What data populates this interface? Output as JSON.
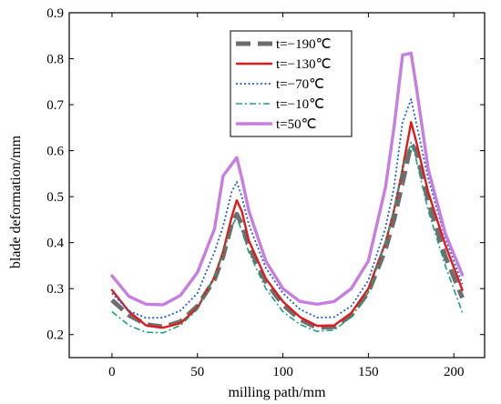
{
  "chart_data": {
    "type": "line",
    "xlabel": "milling path/mm",
    "ylabel": "blade deformation/mm",
    "xlim": [
      -25,
      218
    ],
    "ylim": [
      0.15,
      0.9
    ],
    "x_ticks": [
      0,
      50,
      100,
      150,
      200
    ],
    "y_ticks": [
      0.2,
      0.3,
      0.4,
      0.5,
      0.6,
      0.7,
      0.8,
      0.9
    ],
    "legend_position": "upper-center",
    "series": [
      {
        "name": "t=−190℃",
        "color": "#6e6e6e",
        "dash": "long-dash",
        "points": [
          [
            0,
            0.275
          ],
          [
            10,
            0.242
          ],
          [
            20,
            0.222
          ],
          [
            30,
            0.217
          ],
          [
            40,
            0.228
          ],
          [
            50,
            0.262
          ],
          [
            60,
            0.32
          ],
          [
            65,
            0.37
          ],
          [
            70,
            0.44
          ],
          [
            73,
            0.462
          ],
          [
            76,
            0.44
          ],
          [
            80,
            0.392
          ],
          [
            90,
            0.315
          ],
          [
            100,
            0.265
          ],
          [
            110,
            0.233
          ],
          [
            120,
            0.215
          ],
          [
            130,
            0.217
          ],
          [
            140,
            0.242
          ],
          [
            150,
            0.292
          ],
          [
            160,
            0.385
          ],
          [
            165,
            0.45
          ],
          [
            170,
            0.53
          ],
          [
            175,
            0.615
          ],
          [
            178,
            0.6
          ],
          [
            185,
            0.49
          ],
          [
            195,
            0.37
          ],
          [
            205,
            0.28
          ]
        ]
      },
      {
        "name": "t=−130℃",
        "color": "#e31a1c",
        "dash": "solid",
        "points": [
          [
            0,
            0.297
          ],
          [
            10,
            0.25
          ],
          [
            20,
            0.22
          ],
          [
            30,
            0.215
          ],
          [
            40,
            0.225
          ],
          [
            50,
            0.258
          ],
          [
            60,
            0.325
          ],
          [
            65,
            0.38
          ],
          [
            70,
            0.455
          ],
          [
            73,
            0.492
          ],
          [
            76,
            0.468
          ],
          [
            80,
            0.405
          ],
          [
            90,
            0.322
          ],
          [
            100,
            0.272
          ],
          [
            110,
            0.238
          ],
          [
            120,
            0.219
          ],
          [
            130,
            0.22
          ],
          [
            140,
            0.247
          ],
          [
            150,
            0.3
          ],
          [
            160,
            0.4
          ],
          [
            165,
            0.47
          ],
          [
            170,
            0.56
          ],
          [
            175,
            0.662
          ],
          [
            178,
            0.62
          ],
          [
            185,
            0.51
          ],
          [
            195,
            0.395
          ],
          [
            205,
            0.297
          ]
        ]
      },
      {
        "name": "t=−70℃",
        "color": "#1f5fd1",
        "dash": "dotted",
        "points": [
          [
            0,
            0.29
          ],
          [
            10,
            0.252
          ],
          [
            20,
            0.236
          ],
          [
            30,
            0.237
          ],
          [
            40,
            0.252
          ],
          [
            50,
            0.29
          ],
          [
            60,
            0.38
          ],
          [
            65,
            0.435
          ],
          [
            70,
            0.51
          ],
          [
            73,
            0.532
          ],
          [
            76,
            0.5
          ],
          [
            80,
            0.44
          ],
          [
            90,
            0.345
          ],
          [
            100,
            0.29
          ],
          [
            110,
            0.255
          ],
          [
            120,
            0.237
          ],
          [
            130,
            0.238
          ],
          [
            140,
            0.262
          ],
          [
            150,
            0.318
          ],
          [
            160,
            0.432
          ],
          [
            165,
            0.52
          ],
          [
            170,
            0.662
          ],
          [
            175,
            0.712
          ],
          [
            178,
            0.66
          ],
          [
            185,
            0.54
          ],
          [
            195,
            0.41
          ],
          [
            205,
            0.31
          ]
        ]
      },
      {
        "name": "t=−10℃",
        "color": "#1aa37a",
        "dash": "dash-dot",
        "points": [
          [
            0,
            0.25
          ],
          [
            10,
            0.22
          ],
          [
            20,
            0.205
          ],
          [
            30,
            0.204
          ],
          [
            40,
            0.22
          ],
          [
            50,
            0.255
          ],
          [
            60,
            0.325
          ],
          [
            65,
            0.375
          ],
          [
            70,
            0.435
          ],
          [
            73,
            0.455
          ],
          [
            76,
            0.425
          ],
          [
            80,
            0.38
          ],
          [
            90,
            0.3
          ],
          [
            100,
            0.25
          ],
          [
            110,
            0.222
          ],
          [
            120,
            0.207
          ],
          [
            130,
            0.21
          ],
          [
            140,
            0.238
          ],
          [
            150,
            0.292
          ],
          [
            160,
            0.4
          ],
          [
            165,
            0.47
          ],
          [
            170,
            0.56
          ],
          [
            175,
            0.618
          ],
          [
            178,
            0.58
          ],
          [
            185,
            0.47
          ],
          [
            195,
            0.35
          ],
          [
            205,
            0.248
          ]
        ]
      },
      {
        "name": "t=50℃",
        "color": "#c77ee0",
        "dash": "solid-thick",
        "points": [
          [
            0,
            0.328
          ],
          [
            10,
            0.283
          ],
          [
            20,
            0.266
          ],
          [
            30,
            0.265
          ],
          [
            40,
            0.285
          ],
          [
            50,
            0.335
          ],
          [
            60,
            0.43
          ],
          [
            65,
            0.545
          ],
          [
            70,
            0.57
          ],
          [
            73,
            0.585
          ],
          [
            76,
            0.54
          ],
          [
            80,
            0.47
          ],
          [
            90,
            0.36
          ],
          [
            100,
            0.3
          ],
          [
            110,
            0.272
          ],
          [
            120,
            0.266
          ],
          [
            130,
            0.272
          ],
          [
            140,
            0.3
          ],
          [
            150,
            0.36
          ],
          [
            160,
            0.52
          ],
          [
            165,
            0.65
          ],
          [
            170,
            0.808
          ],
          [
            175,
            0.812
          ],
          [
            178,
            0.74
          ],
          [
            185,
            0.56
          ],
          [
            195,
            0.42
          ],
          [
            205,
            0.33
          ]
        ]
      }
    ]
  }
}
